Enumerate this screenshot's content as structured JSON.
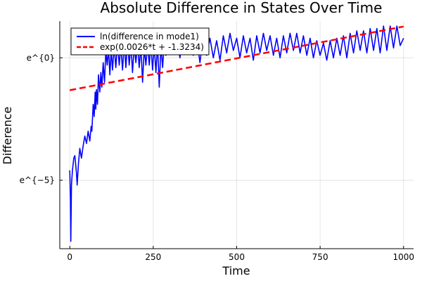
{
  "chart_data": {
    "type": "line",
    "title": "Absolute Difference in States Over Time",
    "xlabel": "Time",
    "ylabel": "Difference",
    "xlim": [
      -30,
      1030
    ],
    "ylim": [
      -7.8,
      1.5
    ],
    "x_ticks": [
      {
        "value": 0,
        "label": "0"
      },
      {
        "value": 250,
        "label": "250"
      },
      {
        "value": 500,
        "label": "500"
      },
      {
        "value": 750,
        "label": "750"
      },
      {
        "value": 1000,
        "label": "1000"
      }
    ],
    "y_ticks": [
      {
        "value": 0,
        "label": "e^{0}"
      },
      {
        "value": -5,
        "label": "e^{−5}"
      }
    ],
    "grid": true,
    "legend_position": "top-left",
    "series": [
      {
        "name": "ln(difference in mode1)",
        "style": "solid",
        "color": "#0000ff",
        "points": [
          [
            0,
            -4.6
          ],
          [
            2,
            -5.8
          ],
          [
            3,
            -7.5
          ],
          [
            5,
            -5.2
          ],
          [
            8,
            -4.6
          ],
          [
            12,
            -4.1
          ],
          [
            15,
            -4.0
          ],
          [
            20,
            -4.7
          ],
          [
            22,
            -5.2
          ],
          [
            26,
            -4.3
          ],
          [
            30,
            -3.7
          ],
          [
            35,
            -4.1
          ],
          [
            40,
            -3.6
          ],
          [
            45,
            -3.2
          ],
          [
            50,
            -3.5
          ],
          [
            55,
            -3.0
          ],
          [
            60,
            -3.4
          ],
          [
            64,
            -2.8
          ],
          [
            66,
            -3.0
          ],
          [
            70,
            -1.9
          ],
          [
            73,
            -2.4
          ],
          [
            76,
            -1.4
          ],
          [
            78,
            -2.1
          ],
          [
            80,
            -1.3
          ],
          [
            83,
            -1.9
          ],
          [
            86,
            -0.7
          ],
          [
            90,
            -1.4
          ],
          [
            93,
            -0.6
          ],
          [
            96,
            -1.2
          ],
          [
            100,
            -0.2
          ],
          [
            104,
            -1.0
          ],
          [
            108,
            0.3
          ],
          [
            112,
            -0.3
          ],
          [
            116,
            0.4
          ],
          [
            120,
            -0.7
          ],
          [
            124,
            0.3
          ],
          [
            128,
            -0.5
          ],
          [
            133,
            0.5
          ],
          [
            138,
            -0.4
          ],
          [
            143,
            0.6
          ],
          [
            148,
            -0.3
          ],
          [
            153,
            0.5
          ],
          [
            158,
            -0.5
          ],
          [
            163,
            0.6
          ],
          [
            168,
            -0.4
          ],
          [
            173,
            0.7
          ],
          [
            178,
            -0.3
          ],
          [
            183,
            0.6
          ],
          [
            188,
            -0.6
          ],
          [
            193,
            0.5
          ],
          [
            198,
            -0.2
          ],
          [
            203,
            0.6
          ],
          [
            208,
            -0.4
          ],
          [
            213,
            0.5
          ],
          [
            218,
            -1.0
          ],
          [
            223,
            0.4
          ],
          [
            228,
            -0.3
          ],
          [
            233,
            0.6
          ],
          [
            238,
            -0.3
          ],
          [
            243,
            0.6
          ],
          [
            248,
            -0.5
          ],
          [
            253,
            0.5
          ],
          [
            258,
            -0.6
          ],
          [
            263,
            0.6
          ],
          [
            268,
            -1.2
          ],
          [
            273,
            0.5
          ],
          [
            278,
            -0.4
          ],
          [
            283,
            0.6
          ],
          [
            288,
            0.1
          ],
          [
            293,
            0.5
          ],
          [
            300,
            0.9
          ],
          [
            310,
            0.3
          ],
          [
            320,
            0.9
          ],
          [
            330,
            0.0
          ],
          [
            340,
            0.9
          ],
          [
            350,
            0.2
          ],
          [
            360,
            1.0
          ],
          [
            370,
            0.1
          ],
          [
            380,
            0.8
          ],
          [
            390,
            -0.2
          ],
          [
            400,
            0.9
          ],
          [
            410,
            0.1
          ],
          [
            420,
            0.8
          ],
          [
            430,
            0.0
          ],
          [
            440,
            0.7
          ],
          [
            450,
            -0.1
          ],
          [
            460,
            0.9
          ],
          [
            470,
            0.2
          ],
          [
            480,
            1.0
          ],
          [
            490,
            0.3
          ],
          [
            500,
            0.8
          ],
          [
            510,
            0.0
          ],
          [
            520,
            0.9
          ],
          [
            530,
            0.2
          ],
          [
            540,
            0.8
          ],
          [
            550,
            -0.1
          ],
          [
            560,
            0.9
          ],
          [
            570,
            0.2
          ],
          [
            580,
            1.0
          ],
          [
            590,
            0.3
          ],
          [
            600,
            0.9
          ],
          [
            610,
            0.1
          ],
          [
            620,
            0.8
          ],
          [
            630,
            0.0
          ],
          [
            640,
            0.9
          ],
          [
            650,
            0.2
          ],
          [
            660,
            1.0
          ],
          [
            670,
            0.3
          ],
          [
            680,
            1.0
          ],
          [
            690,
            0.2
          ],
          [
            700,
            0.9
          ],
          [
            710,
            0.1
          ],
          [
            720,
            0.8
          ],
          [
            730,
            0.0
          ],
          [
            740,
            0.7
          ],
          [
            750,
            0.1
          ],
          [
            760,
            0.6
          ],
          [
            770,
            -0.1
          ],
          [
            780,
            0.7
          ],
          [
            790,
            0.0
          ],
          [
            800,
            0.8
          ],
          [
            810,
            0.1
          ],
          [
            820,
            0.9
          ],
          [
            830,
            0.0
          ],
          [
            840,
            1.0
          ],
          [
            850,
            0.2
          ],
          [
            860,
            1.1
          ],
          [
            870,
            0.3
          ],
          [
            880,
            1.1
          ],
          [
            890,
            0.2
          ],
          [
            900,
            1.2
          ],
          [
            910,
            0.3
          ],
          [
            920,
            1.2
          ],
          [
            930,
            0.2
          ],
          [
            940,
            1.3
          ],
          [
            950,
            0.3
          ],
          [
            960,
            1.3
          ],
          [
            970,
            0.4
          ],
          [
            980,
            1.3
          ],
          [
            990,
            0.5
          ],
          [
            1000,
            0.8
          ]
        ]
      },
      {
        "name": "exp(0.0026*t + -1.3234)",
        "style": "dashed",
        "color": "#ff0000",
        "fit": {
          "slope": 0.0026,
          "intercept": -1.3234,
          "x_range": [
            0,
            1000
          ]
        }
      }
    ]
  }
}
